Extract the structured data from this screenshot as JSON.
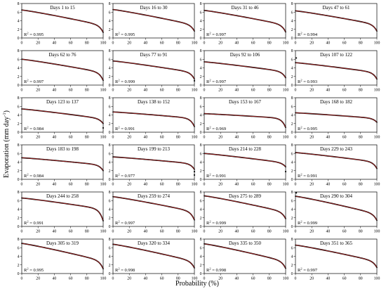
{
  "figure": {
    "ylabel_main": "Evaporation (mm day",
    "ylabel_sup": "-1",
    "ylabel_close": ")",
    "xlabel": "Probability (%)",
    "colors": {
      "observed": "#111111",
      "fitted": "#d21f1f",
      "axes": "#000000"
    }
  },
  "chart_data": [
    {
      "type": "line",
      "title": "Days 1 to 15",
      "r2_prefix": "R",
      "r2_sup": "2",
      "r2_value": " = 0.995",
      "start": 6.5,
      "end": 2.9,
      "tail": 1.3,
      "xlim": [
        0,
        100
      ],
      "ylim": [
        0,
        8
      ],
      "xticks": [
        0,
        20,
        40,
        60,
        80,
        100
      ],
      "yticks": [
        0,
        2,
        4,
        6,
        8
      ],
      "outliers": []
    },
    {
      "type": "line",
      "title": "Days 16 to 30",
      "r2_prefix": "R",
      "r2_sup": "2",
      "r2_value": " = 0.995",
      "start": 6.6,
      "end": 3.0,
      "tail": 1.6,
      "xlim": [
        0,
        100
      ],
      "ylim": [
        0,
        8
      ],
      "xticks": [
        0,
        20,
        40,
        60,
        80,
        100
      ],
      "yticks": [
        0,
        2,
        4,
        6,
        8
      ],
      "outliers": []
    },
    {
      "type": "line",
      "title": "Days 31 to 46",
      "r2_prefix": "R",
      "r2_sup": "2",
      "r2_value": " = 0.997",
      "start": 6.4,
      "end": 3.0,
      "tail": 1.4,
      "xlim": [
        0,
        100
      ],
      "ylim": [
        0,
        8
      ],
      "xticks": [
        0,
        20,
        40,
        60,
        80,
        100
      ],
      "yticks": [
        0,
        2,
        4,
        6,
        8
      ],
      "outliers": []
    },
    {
      "type": "line",
      "title": "Days 47 to 61",
      "r2_prefix": "R",
      "r2_sup": "2",
      "r2_value": " = 0.994",
      "start": 6.3,
      "end": 3.1,
      "tail": 1.6,
      "xlim": [
        0,
        100
      ],
      "ylim": [
        0,
        8
      ],
      "xticks": [
        0,
        20,
        40,
        60,
        80,
        100
      ],
      "yticks": [
        0,
        2,
        4,
        6,
        8
      ],
      "outliers": []
    },
    {
      "type": "line",
      "title": "Days 62 to 76",
      "r2_prefix": "R",
      "r2_sup": "2",
      "r2_value": " = 0.997",
      "start": 6.0,
      "end": 2.9,
      "tail": 1.1,
      "xlim": [
        0,
        100
      ],
      "ylim": [
        0,
        8
      ],
      "xticks": [
        0,
        20,
        40,
        60,
        80,
        100
      ],
      "yticks": [
        0,
        2,
        4,
        6,
        8
      ],
      "outliers": []
    },
    {
      "type": "line",
      "title": "Days 77 to 91",
      "r2_prefix": "R",
      "r2_sup": "2",
      "r2_value": " = 0.999",
      "start": 5.6,
      "end": 2.9,
      "tail": 1.4,
      "xlim": [
        0,
        100
      ],
      "ylim": [
        0,
        8
      ],
      "xticks": [
        0,
        20,
        40,
        60,
        80,
        100
      ],
      "yticks": [
        0,
        2,
        4,
        6,
        8
      ],
      "outliers": [
        {
          "x": 100,
          "y": 1.0
        }
      ]
    },
    {
      "type": "line",
      "title": "Days 92 to 106",
      "r2_prefix": "R",
      "r2_sup": "2",
      "r2_value": " = 0.997",
      "start": 5.4,
      "end": 3.1,
      "tail": 1.7,
      "xlim": [
        0,
        100
      ],
      "ylim": [
        0,
        8
      ],
      "xticks": [
        0,
        20,
        40,
        60,
        80,
        100
      ],
      "yticks": [
        0,
        2,
        4,
        6,
        8
      ],
      "outliers": []
    },
    {
      "type": "line",
      "title": "Days 107 to 122",
      "r2_prefix": "R",
      "r2_sup": "2",
      "r2_value": " = 0.993",
      "start": 5.2,
      "end": 2.9,
      "tail": 1.4,
      "xlim": [
        0,
        100
      ],
      "ylim": [
        0,
        8
      ],
      "xticks": [
        0,
        20,
        40,
        60,
        80,
        100
      ],
      "yticks": [
        0,
        2,
        4,
        6,
        8
      ],
      "outliers": [
        {
          "x": 1,
          "y": 6.3
        }
      ]
    },
    {
      "type": "line",
      "title": "Days 123 to 137",
      "r2_prefix": "R",
      "r2_sup": "2",
      "r2_value": " = 0.984",
      "start": 5.4,
      "end": 3.1,
      "tail": 2.0,
      "xlim": [
        0,
        100
      ],
      "ylim": [
        0,
        8
      ],
      "xticks": [
        0,
        20,
        40,
        60,
        80,
        100
      ],
      "yticks": [
        0,
        2,
        4,
        6,
        8
      ],
      "outliers": [
        {
          "x": 100,
          "y": 1.0
        }
      ]
    },
    {
      "type": "line",
      "title": "Days 138 to 152",
      "r2_prefix": "R",
      "r2_sup": "2",
      "r2_value": " = 0.991",
      "start": 4.7,
      "end": 3.2,
      "tail": 1.3,
      "xlim": [
        0,
        100
      ],
      "ylim": [
        0,
        8
      ],
      "xticks": [
        0,
        20,
        40,
        60,
        80,
        100
      ],
      "yticks": [
        0,
        2,
        4,
        6,
        8
      ],
      "outliers": []
    },
    {
      "type": "line",
      "title": "Days 153 to 167",
      "r2_prefix": "R",
      "r2_sup": "2",
      "r2_value": " = 0.969",
      "start": 4.3,
      "end": 3.2,
      "tail": 1.1,
      "xlim": [
        0,
        100
      ],
      "ylim": [
        0,
        8
      ],
      "xticks": [
        0,
        20,
        40,
        60,
        80,
        100
      ],
      "yticks": [
        0,
        2,
        4,
        6,
        8
      ],
      "outliers": []
    },
    {
      "type": "line",
      "title": "Days 168 to 182",
      "r2_prefix": "R",
      "r2_sup": "2",
      "r2_value": " = 0.995",
      "start": 4.5,
      "end": 3.2,
      "tail": 2.3,
      "xlim": [
        0,
        100
      ],
      "ylim": [
        0,
        8
      ],
      "xticks": [
        0,
        20,
        40,
        60,
        80,
        100
      ],
      "yticks": [
        0,
        2,
        4,
        6,
        8
      ],
      "outliers": []
    },
    {
      "type": "line",
      "title": "Days 183 to 198",
      "r2_prefix": "R",
      "r2_sup": "2",
      "r2_value": " = 0.984",
      "start": 5.0,
      "end": 3.3,
      "tail": 2.0,
      "xlim": [
        0,
        100
      ],
      "ylim": [
        0,
        8
      ],
      "xticks": [
        0,
        20,
        40,
        60,
        80,
        100
      ],
      "yticks": [
        0,
        2,
        4,
        6,
        8
      ],
      "outliers": []
    },
    {
      "type": "line",
      "title": "Days 199 to 213",
      "r2_prefix": "R",
      "r2_sup": "2",
      "r2_value": " = 0.977",
      "start": 5.2,
      "end": 3.6,
      "tail": 2.3,
      "xlim": [
        0,
        100
      ],
      "ylim": [
        0,
        8
      ],
      "xticks": [
        0,
        20,
        40,
        60,
        80,
        100
      ],
      "yticks": [
        0,
        2,
        4,
        6,
        8
      ],
      "outliers": [
        {
          "x": 100,
          "y": 1.8
        },
        {
          "x": 100,
          "y": 1.0
        }
      ]
    },
    {
      "type": "line",
      "title": "Days 214 to 228",
      "r2_prefix": "R",
      "r2_sup": "2",
      "r2_value": " = 0.991",
      "start": 6.0,
      "end": 3.8,
      "tail": 2.9,
      "xlim": [
        0,
        100
      ],
      "ylim": [
        0,
        8
      ],
      "xticks": [
        0,
        20,
        40,
        60,
        80,
        100
      ],
      "yticks": [
        0,
        2,
        4,
        6,
        8
      ],
      "outliers": [
        {
          "x": 100,
          "y": 1.8
        }
      ]
    },
    {
      "type": "line",
      "title": "Days 229 to 243",
      "r2_prefix": "R",
      "r2_sup": "2",
      "r2_value": " = 0.991",
      "start": 6.2,
      "end": 4.0,
      "tail": 2.5,
      "xlim": [
        0,
        100
      ],
      "ylim": [
        0,
        8
      ],
      "xticks": [
        0,
        20,
        40,
        60,
        80,
        100
      ],
      "yticks": [
        0,
        2,
        4,
        6,
        8
      ],
      "outliers": []
    },
    {
      "type": "line",
      "title": "Days 244 to 258",
      "r2_prefix": "R",
      "r2_sup": "2",
      "r2_value": " = 0.991",
      "start": 6.6,
      "end": 4.0,
      "tail": 1.3,
      "xlim": [
        0,
        100
      ],
      "ylim": [
        0,
        8
      ],
      "xticks": [
        0,
        20,
        40,
        60,
        80,
        100
      ],
      "yticks": [
        0,
        2,
        4,
        6,
        8
      ],
      "outliers": []
    },
    {
      "type": "line",
      "title": "Days 259 to 274",
      "r2_prefix": "R",
      "r2_sup": "2",
      "r2_value": " = 0.997",
      "start": 6.9,
      "end": 3.4,
      "tail": 1.5,
      "xlim": [
        0,
        100
      ],
      "ylim": [
        0,
        8
      ],
      "xticks": [
        0,
        20,
        40,
        60,
        80,
        100
      ],
      "yticks": [
        0,
        2,
        4,
        6,
        8
      ],
      "outliers": []
    },
    {
      "type": "line",
      "title": "Days 275 to 289",
      "r2_prefix": "R",
      "r2_sup": "2",
      "r2_value": " = 0.999",
      "start": 7.1,
      "end": 3.3,
      "tail": 1.8,
      "xlim": [
        0,
        100
      ],
      "ylim": [
        0,
        8
      ],
      "xticks": [
        0,
        20,
        40,
        60,
        80,
        100
      ],
      "yticks": [
        0,
        2,
        4,
        6,
        8
      ],
      "outliers": []
    },
    {
      "type": "line",
      "title": "Days 290 to 304",
      "r2_prefix": "R",
      "r2_sup": "2",
      "r2_value": " = 0.999",
      "start": 7.0,
      "end": 2.9,
      "tail": 1.4,
      "xlim": [
        0,
        100
      ],
      "ylim": [
        0,
        8
      ],
      "xticks": [
        0,
        20,
        40,
        60,
        80,
        100
      ],
      "yticks": [
        0,
        2,
        4,
        6,
        8
      ],
      "outliers": [
        {
          "x": 1,
          "y": 7.8
        }
      ]
    },
    {
      "type": "line",
      "title": "Days 305 to 319",
      "r2_prefix": "R",
      "r2_sup": "2",
      "r2_value": " = 0.995",
      "start": 7.0,
      "end": 2.9,
      "tail": 1.1,
      "xlim": [
        0,
        100
      ],
      "ylim": [
        0,
        8
      ],
      "xticks": [
        0,
        20,
        40,
        60,
        80,
        100
      ],
      "yticks": [
        0,
        2,
        4,
        6,
        8
      ],
      "outliers": []
    },
    {
      "type": "line",
      "title": "Days 320 to 334",
      "r2_prefix": "R",
      "r2_sup": "2",
      "r2_value": " = 0.998",
      "start": 6.8,
      "end": 2.8,
      "tail": 1.3,
      "xlim": [
        0,
        100
      ],
      "ylim": [
        0,
        8
      ],
      "xticks": [
        0,
        20,
        40,
        60,
        80,
        100
      ],
      "yticks": [
        0,
        2,
        4,
        6,
        8
      ],
      "outliers": []
    },
    {
      "type": "line",
      "title": "Days 335 to 350",
      "r2_prefix": "R",
      "r2_sup": "2",
      "r2_value": " = 0.998",
      "start": 6.9,
      "end": 2.8,
      "tail": 1.2,
      "xlim": [
        0,
        100
      ],
      "ylim": [
        0,
        8
      ],
      "xticks": [
        0,
        20,
        40,
        60,
        80,
        100
      ],
      "yticks": [
        0,
        2,
        4,
        6,
        8
      ],
      "outliers": []
    },
    {
      "type": "line",
      "title": "Days 351 to 365",
      "r2_prefix": "R",
      "r2_sup": "2",
      "r2_value": " = 0.997",
      "start": 6.6,
      "end": 2.8,
      "tail": 1.4,
      "xlim": [
        0,
        100
      ],
      "ylim": [
        0,
        8
      ],
      "xticks": [
        0,
        20,
        40,
        60,
        80,
        100
      ],
      "yticks": [
        0,
        2,
        4,
        6,
        8
      ],
      "outliers": []
    }
  ]
}
